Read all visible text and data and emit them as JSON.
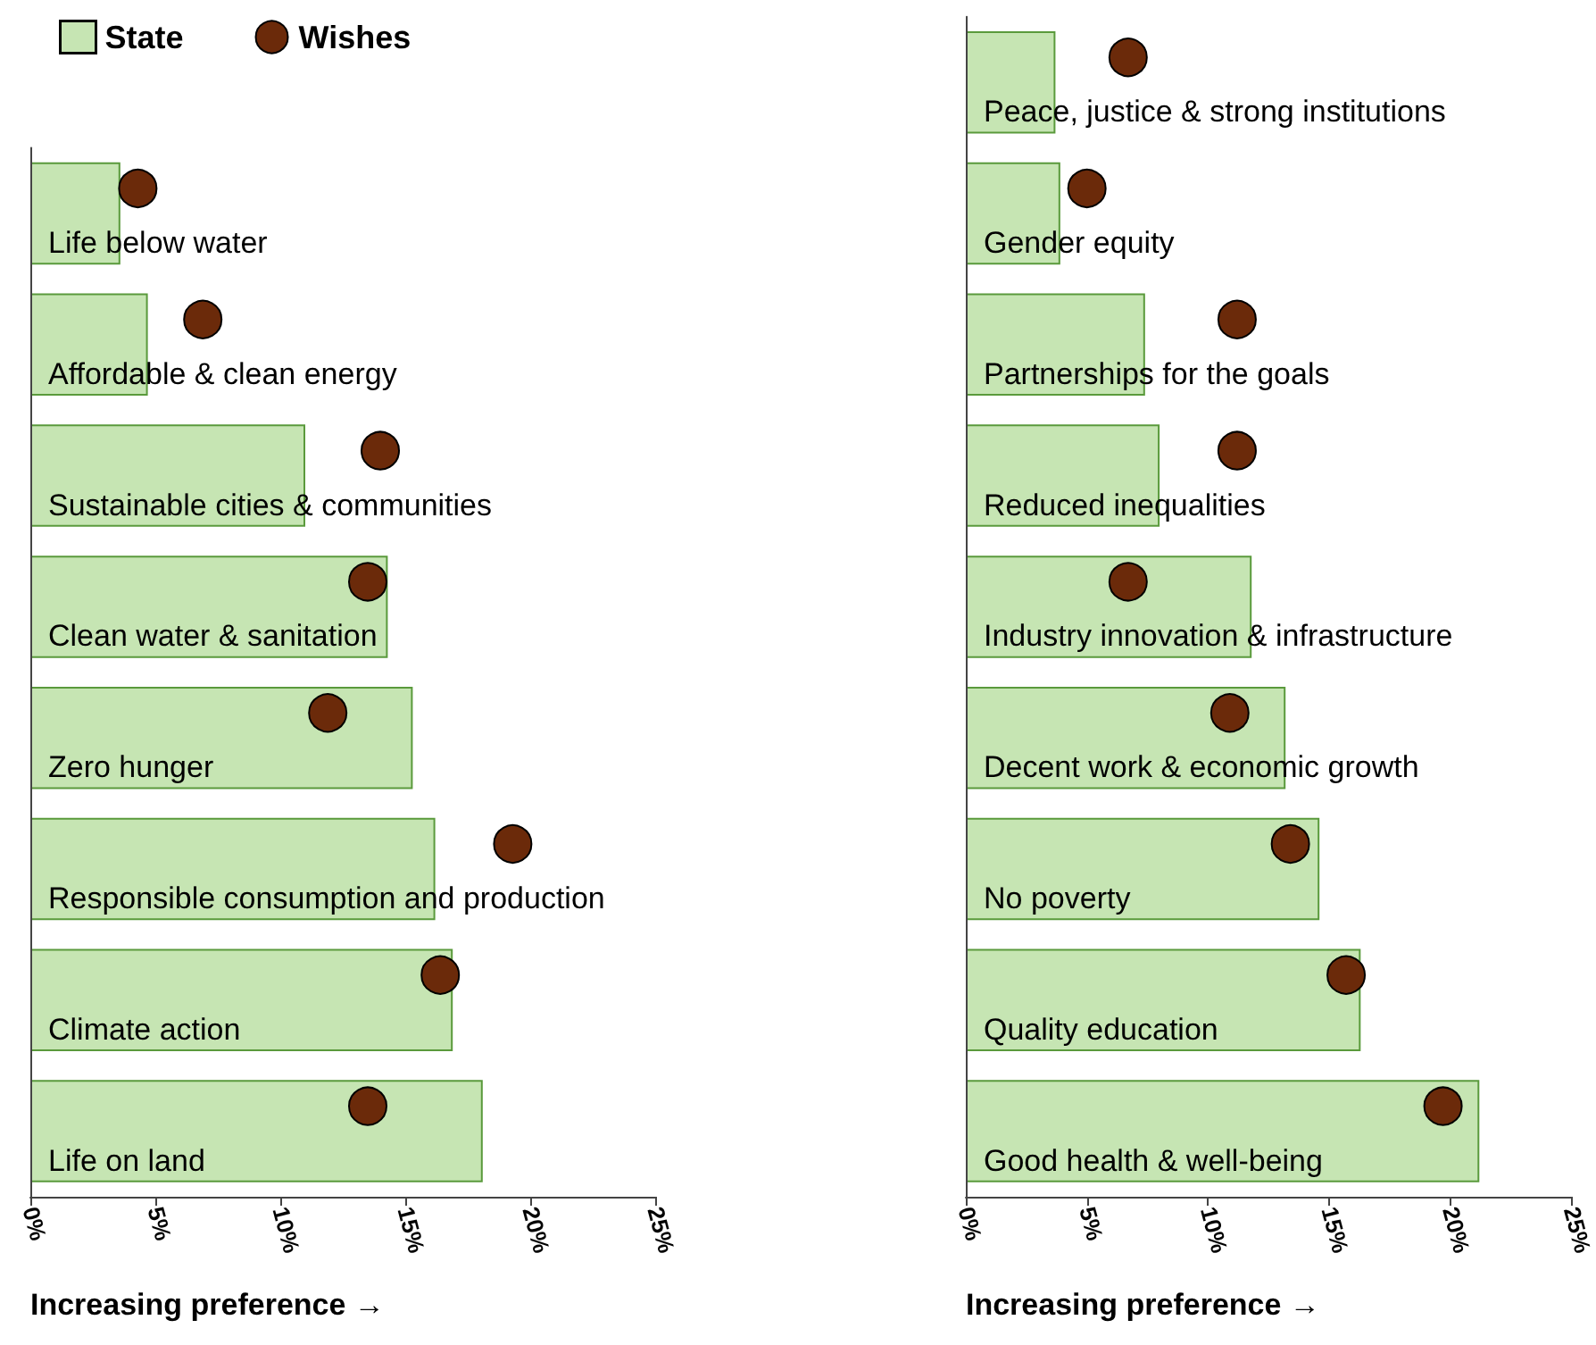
{
  "chart_data": [
    {
      "type": "bar",
      "orientation": "horizontal",
      "xlabel": "Increasing preference →",
      "legend": "top left",
      "grid": false,
      "categories": [
        "Life below water",
        "Affordable & clean energy",
        "Sustainable cities & communities",
        "Clean water & sanitation",
        "Zero hunger",
        "Responsible consumption and production",
        "Climate action",
        "Life on land"
      ],
      "xlim": [
        0,
        25
      ],
      "xticks": [
        {
          "value": 0,
          "label": "0%"
        },
        {
          "value": 5,
          "label": "5%"
        },
        {
          "value": 10,
          "label": "10%"
        },
        {
          "value": 15,
          "label": "15%"
        },
        {
          "value": 20,
          "label": "20%"
        },
        {
          "value": 25,
          "label": "25%"
        }
      ],
      "series": [
        {
          "name": "State",
          "color": "#c6e5b3",
          "values": [
            3.6,
            4.7,
            11.0,
            14.3,
            15.3,
            16.2,
            16.9,
            18.1
          ]
        },
        {
          "name": "Wishes",
          "type": "scatter",
          "marker": "circle",
          "color": "#6b2a0a",
          "values": [
            4.3,
            6.9,
            14.0,
            13.5,
            11.9,
            19.3,
            16.4,
            13.5
          ]
        }
      ]
    },
    {
      "type": "bar",
      "orientation": "horizontal",
      "xlabel": "Increasing preference →",
      "grid": false,
      "categories": [
        "Peace, justice & strong institutions",
        "Gender equity",
        "Partnerships for the goals",
        "Reduced inequalities",
        "Industry innovation & infrastructure",
        "Decent work & economic growth",
        "No poverty",
        "Quality education",
        "Good health & well-being"
      ],
      "xlim": [
        0,
        25
      ],
      "xticks": [
        {
          "value": 0,
          "label": "0%"
        },
        {
          "value": 5,
          "label": "5%"
        },
        {
          "value": 10,
          "label": "10%"
        },
        {
          "value": 15,
          "label": "15%"
        },
        {
          "value": 20,
          "label": "20%"
        },
        {
          "value": 25,
          "label": "25%"
        }
      ],
      "series": [
        {
          "color": "#c6e5b3",
          "values": [
            3.7,
            3.9,
            7.4,
            8.0,
            11.8,
            13.2,
            14.6,
            16.3,
            21.2
          ]
        },
        {
          "type": "scatter",
          "marker": "circle",
          "color": "#6b2a0a",
          "values": [
            6.7,
            5.0,
            11.2,
            11.2,
            6.7,
            10.9,
            13.4,
            15.7,
            19.7
          ]
        }
      ]
    }
  ]
}
